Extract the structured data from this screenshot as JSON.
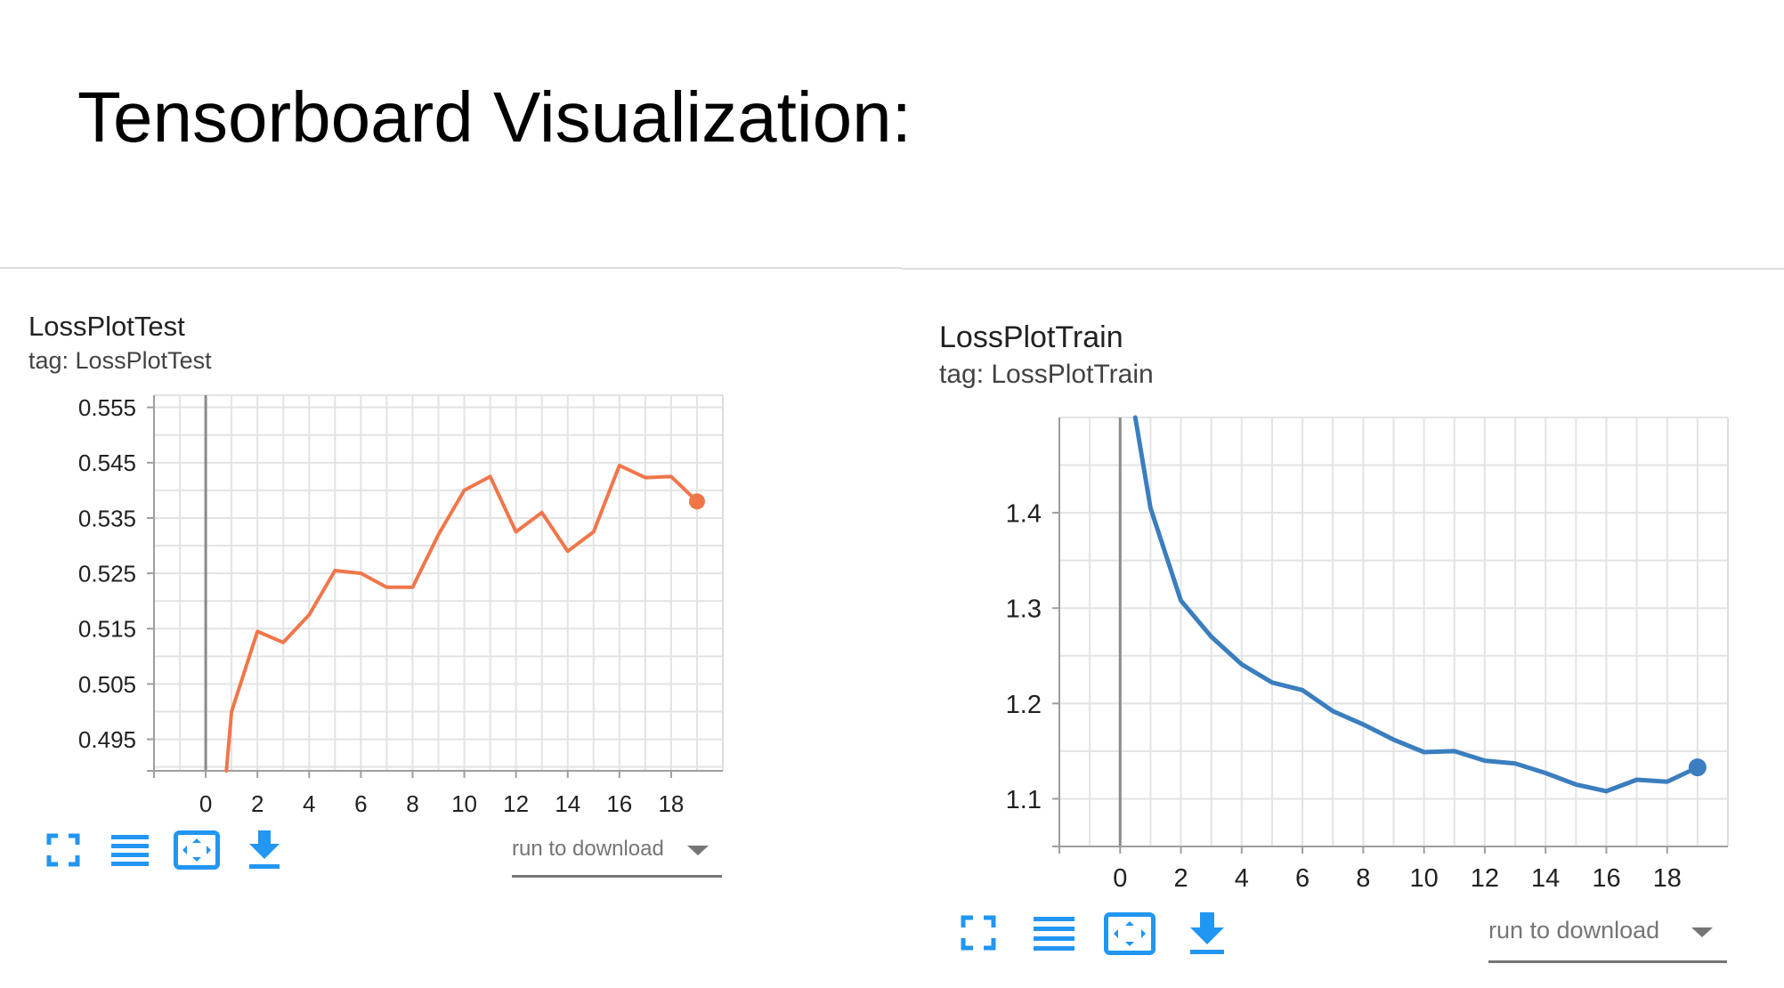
{
  "page": {
    "title": "Tensorboard Visualization:"
  },
  "colors": {
    "test_series": "#f0764a",
    "train_series": "#3a7ebf",
    "icon_blue": "#2196f3",
    "grid": "#dddddd",
    "axis": "#9e9e9e",
    "zero_line": "#888888"
  },
  "cards": {
    "test": {
      "title": "LossPlotTest",
      "tag": "tag: LossPlotTest",
      "toolbar": {
        "fullscreen_icon": "fullscreen-icon",
        "log_scale_icon": "data-table-icon",
        "fit_domain_icon": "fit-domain-icon",
        "download_icon": "download-icon"
      },
      "dropdown": {
        "label": "run to download"
      }
    },
    "train": {
      "title": "LossPlotTrain",
      "tag": "tag: LossPlotTrain",
      "toolbar": {
        "fullscreen_icon": "fullscreen-icon",
        "log_scale_icon": "data-table-icon",
        "fit_domain_icon": "fit-domain-icon",
        "download_icon": "download-icon"
      },
      "dropdown": {
        "label": "run to download"
      }
    }
  },
  "chart_data": [
    {
      "type": "line",
      "title": "LossPlotTest",
      "xlabel": "",
      "ylabel": "",
      "xlim": [
        -2,
        20
      ],
      "ylim": [
        0.4893,
        0.5572
      ],
      "x_ticks": [
        0,
        2,
        4,
        6,
        8,
        10,
        12,
        14,
        16,
        18
      ],
      "y_ticks": [
        0.555,
        0.545,
        0.535,
        0.525,
        0.515,
        0.505,
        0.495
      ],
      "y_tick_labels": [
        "0.555",
        "0.545",
        "0.535",
        "0.525",
        "0.515",
        "0.505",
        "0.495"
      ],
      "grid": true,
      "series": [
        {
          "x": [
            0.8,
            1,
            2,
            3,
            4,
            5,
            6,
            7,
            8,
            9,
            10,
            11,
            12,
            13,
            14,
            15,
            16,
            17,
            18,
            19
          ],
          "y": [
            0.4893,
            0.5,
            0.5145,
            0.5125,
            0.5175,
            0.5255,
            0.525,
            0.5225,
            0.5225,
            0.532,
            0.54,
            0.5425,
            0.5325,
            0.536,
            0.529,
            0.5325,
            0.5445,
            0.5423,
            0.5425,
            0.538
          ]
        }
      ]
    },
    {
      "type": "line",
      "title": "LossPlotTrain",
      "xlabel": "",
      "ylabel": "",
      "xlim": [
        -2,
        20
      ],
      "ylim": [
        1.05,
        1.5
      ],
      "x_ticks": [
        0,
        2,
        4,
        6,
        8,
        10,
        12,
        14,
        16,
        18
      ],
      "y_ticks": [
        1.4,
        1.3,
        1.2,
        1.1
      ],
      "y_tick_labels": [
        "1.4",
        "1.3",
        "1.2",
        "1.1"
      ],
      "grid": true,
      "series": [
        {
          "x": [
            0.5,
            1,
            2,
            3,
            4,
            5,
            6,
            7,
            8,
            9,
            10,
            11,
            12,
            13,
            14,
            15,
            16,
            17,
            18,
            19
          ],
          "y": [
            1.5,
            1.405,
            1.308,
            1.27,
            1.241,
            1.222,
            1.214,
            1.192,
            1.178,
            1.162,
            1.149,
            1.15,
            1.14,
            1.137,
            1.127,
            1.115,
            1.108,
            1.12,
            1.118,
            1.133
          ]
        }
      ]
    }
  ]
}
